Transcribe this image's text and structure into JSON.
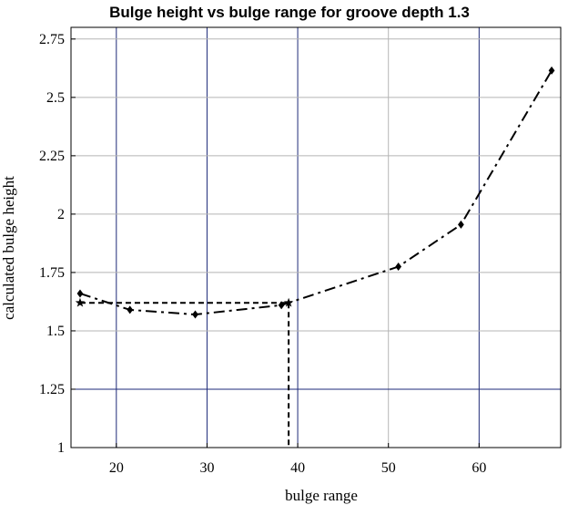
{
  "chart_data": {
    "type": "line",
    "title": "Bulge height vs bulge range for groove depth 1.3",
    "xlabel": "bulge range",
    "ylabel": "calculated bulge height",
    "xlim": [
      15,
      69
    ],
    "ylim": [
      1.0,
      2.8
    ],
    "x_ticks": [
      20,
      30,
      40,
      50,
      60
    ],
    "x_tick_labels": [
      "20",
      "30",
      "40",
      "50",
      "60"
    ],
    "y_ticks": [
      1.0,
      1.25,
      1.5,
      1.75,
      2.0,
      2.25,
      2.5,
      2.75
    ],
    "y_tick_labels": [
      "1",
      "1.25",
      "1.5",
      "1.75",
      "2",
      "2.25",
      "2.5",
      "2.75"
    ],
    "grid": true,
    "grid_dark_x": [
      20,
      30,
      40,
      60
    ],
    "grid_dark_y": [
      1.25
    ],
    "series": [
      {
        "marker": "diamond",
        "line_style": "dashdot",
        "x": [
          16.0,
          21.5,
          28.7,
          38.2,
          51.1,
          58.0,
          68.0
        ],
        "y": [
          1.66,
          1.59,
          1.57,
          1.61,
          1.775,
          1.955,
          2.615
        ]
      },
      {
        "marker": "star",
        "line_style": "dashed",
        "x": [
          16.0,
          39.0
        ],
        "y": [
          1.62,
          1.62
        ]
      }
    ],
    "reference_line": {
      "x": 39.0,
      "y_from": 1.62,
      "y_to": 1.0,
      "line_style": "dashed"
    }
  },
  "colors": {
    "grid_light": "#b5b5b5",
    "grid_dark": "#1e2a78",
    "line": "#000000"
  }
}
